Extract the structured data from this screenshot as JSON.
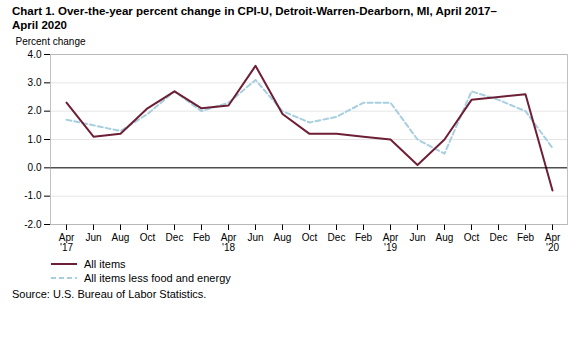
{
  "chart_data": {
    "type": "line",
    "title": "Chart 1. Over-the-year percent change in CPI-U, Detroit-Warren-Dearborn, MI, April 2017–\nApril 2020",
    "y_label": "Percent change",
    "source": "Source: U.S. Bureau of Labor Statistics.",
    "categories": [
      "Apr\n'17",
      "Jun",
      "Aug",
      "Oct",
      "Dec",
      "Feb",
      "Apr\n'18",
      "Jun",
      "Aug",
      "Oct",
      "Dec",
      "Feb",
      "Apr\n'19",
      "Jun",
      "Aug",
      "Oct",
      "Dec",
      "Feb",
      "Apr\n'20"
    ],
    "series": [
      {
        "name": "All items",
        "color": "#6d1f35",
        "line_style": "solid",
        "values": [
          2.3,
          1.1,
          1.2,
          2.1,
          2.7,
          2.1,
          2.2,
          3.6,
          1.9,
          1.2,
          1.2,
          1.1,
          1.0,
          0.1,
          1.0,
          2.4,
          2.5,
          2.6,
          -0.8
        ]
      },
      {
        "name": "All items less food and energy",
        "color": "#a8cfe0",
        "line_style": "dashed",
        "values": [
          1.7,
          1.5,
          1.3,
          1.9,
          2.7,
          2.0,
          2.3,
          3.1,
          2.0,
          1.6,
          1.8,
          2.3,
          2.3,
          1.0,
          0.5,
          2.7,
          2.4,
          2.0,
          0.7
        ]
      }
    ],
    "ylim": [
      -2.0,
      4.0
    ],
    "yticks": [
      {
        "value": -2.0,
        "label": "-2.0"
      },
      {
        "value": -1.0,
        "label": "-1.0"
      },
      {
        "value": 0.0,
        "label": "0.0"
      },
      {
        "value": 1.0,
        "label": "1.0"
      },
      {
        "value": 2.0,
        "label": "2.0"
      },
      {
        "value": 3.0,
        "label": "3.0"
      },
      {
        "value": 4.0,
        "label": "4.0"
      }
    ],
    "grid": true,
    "legend": "lower left"
  }
}
